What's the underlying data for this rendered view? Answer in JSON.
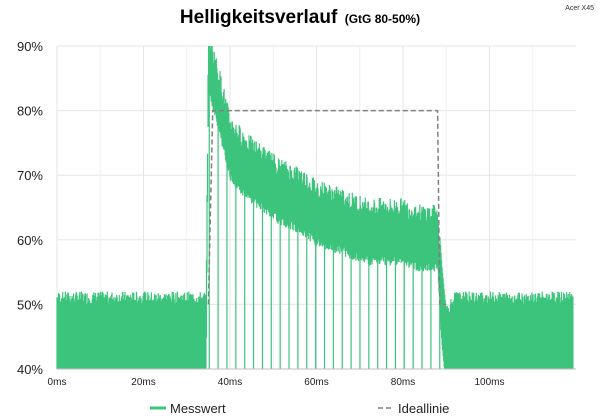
{
  "corner_label": "Acer X45",
  "chart_data": {
    "type": "line",
    "title": "Helligkeitsverlauf",
    "subtitle": "(GtG 80-50%)",
    "x_ticks": [
      "0ms",
      "20ms",
      "40ms",
      "60ms",
      "80ms",
      "100ms"
    ],
    "x_tick_values": [
      0,
      20,
      40,
      60,
      80,
      100
    ],
    "y_ticks": [
      "40%",
      "50%",
      "60%",
      "70%",
      "80%",
      "90%"
    ],
    "y_tick_values": [
      40,
      50,
      60,
      70,
      80,
      90
    ],
    "xlim": [
      0,
      120
    ],
    "ylim": [
      40,
      90
    ],
    "grid": true,
    "legend_position": "bottom",
    "series": [
      {
        "name": "Messwert",
        "color": "#3cc47c",
        "style": "solid",
        "description_points": {
          "x": [
            0,
            10,
            20,
            30,
            34.5,
            35,
            36,
            38,
            40,
            44,
            48,
            52,
            56,
            60,
            64,
            68,
            72,
            76,
            80,
            84,
            88,
            89,
            90,
            92,
            100,
            110,
            119
          ],
          "y": [
            45,
            45,
            45,
            45,
            45,
            88,
            85,
            80,
            74,
            71,
            69,
            67,
            66,
            64,
            63,
            62,
            61,
            61,
            61,
            60,
            60,
            50,
            43,
            45,
            45,
            45,
            45
          ]
        }
      },
      {
        "name": "Ideallinie",
        "color": "#808080",
        "style": "dashed",
        "x": [
          35,
          36,
          88,
          88.5,
          90
        ],
        "y": [
          50,
          80,
          80,
          50,
          50
        ]
      }
    ]
  }
}
